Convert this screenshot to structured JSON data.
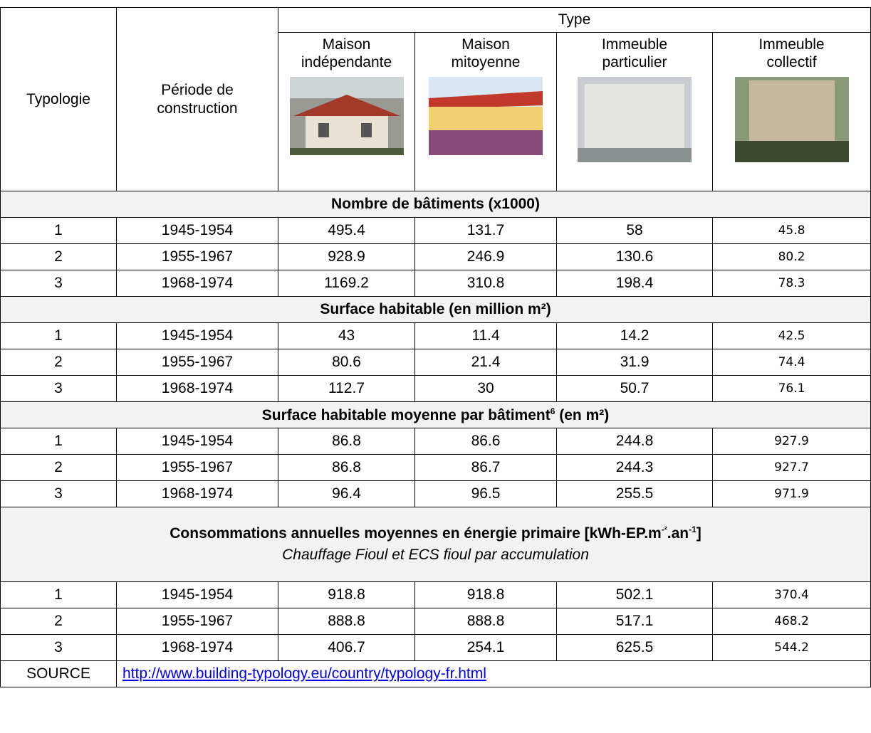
{
  "header": {
    "typologie": "Typologie",
    "periode": [
      "Période de",
      "construction"
    ],
    "type": "Type",
    "types": [
      [
        "Maison",
        "indépendante"
      ],
      [
        "Maison",
        "mitoyenne"
      ],
      [
        "Immeuble",
        "particulier"
      ],
      [
        "Immeuble",
        "collectif"
      ]
    ]
  },
  "sections": [
    {
      "title": [
        "Nombre de bâtiments (x1000)"
      ],
      "rows": [
        [
          1,
          "1945-1954",
          495.4,
          131.7,
          58,
          45.8
        ],
        [
          2,
          "1955-1967",
          928.9,
          246.9,
          130.6,
          80.2
        ],
        [
          3,
          "1968-1974",
          1169.2,
          310.8,
          198.4,
          78.3
        ]
      ]
    },
    {
      "title": [
        "Surface habitable (en million m²)"
      ],
      "rows": [
        [
          1,
          "1945-1954",
          43,
          11.4,
          14.2,
          42.5
        ],
        [
          2,
          "1955-1967",
          80.6,
          21.4,
          31.9,
          74.4
        ],
        [
          3,
          "1968-1974",
          112.7,
          30,
          50.7,
          76.1
        ]
      ]
    },
    {
      "title": [
        "Surface habitable moyenne par bâtiment",
        "6",
        " (en m²)"
      ],
      "rows": [
        [
          1,
          "1945-1954",
          86.8,
          86.6,
          244.8,
          927.9
        ],
        [
          2,
          "1955-1967",
          86.8,
          86.7,
          244.3,
          927.7
        ],
        [
          3,
          "1968-1974",
          96.4,
          96.5,
          255.5,
          971.9
        ]
      ]
    },
    {
      "title": [
        "Consommations annuelles moyennes en énergie primaire [kWh-EP.m",
        "-²",
        ".an",
        "-1",
        "]"
      ],
      "subtitle": "Chauffage Fioul et ECS fioul par accumulation",
      "rows": [
        [
          1,
          "1945-1954",
          918.8,
          918.8,
          502.1,
          370.4
        ],
        [
          2,
          "1955-1967",
          888.8,
          888.8,
          517.1,
          468.2
        ],
        [
          3,
          "1968-1974",
          406.7,
          254.1,
          625.5,
          544.2
        ]
      ]
    }
  ],
  "source": {
    "label": "SOURCE",
    "url": "http://www.building-typology.eu/country/typology-fr.html"
  }
}
